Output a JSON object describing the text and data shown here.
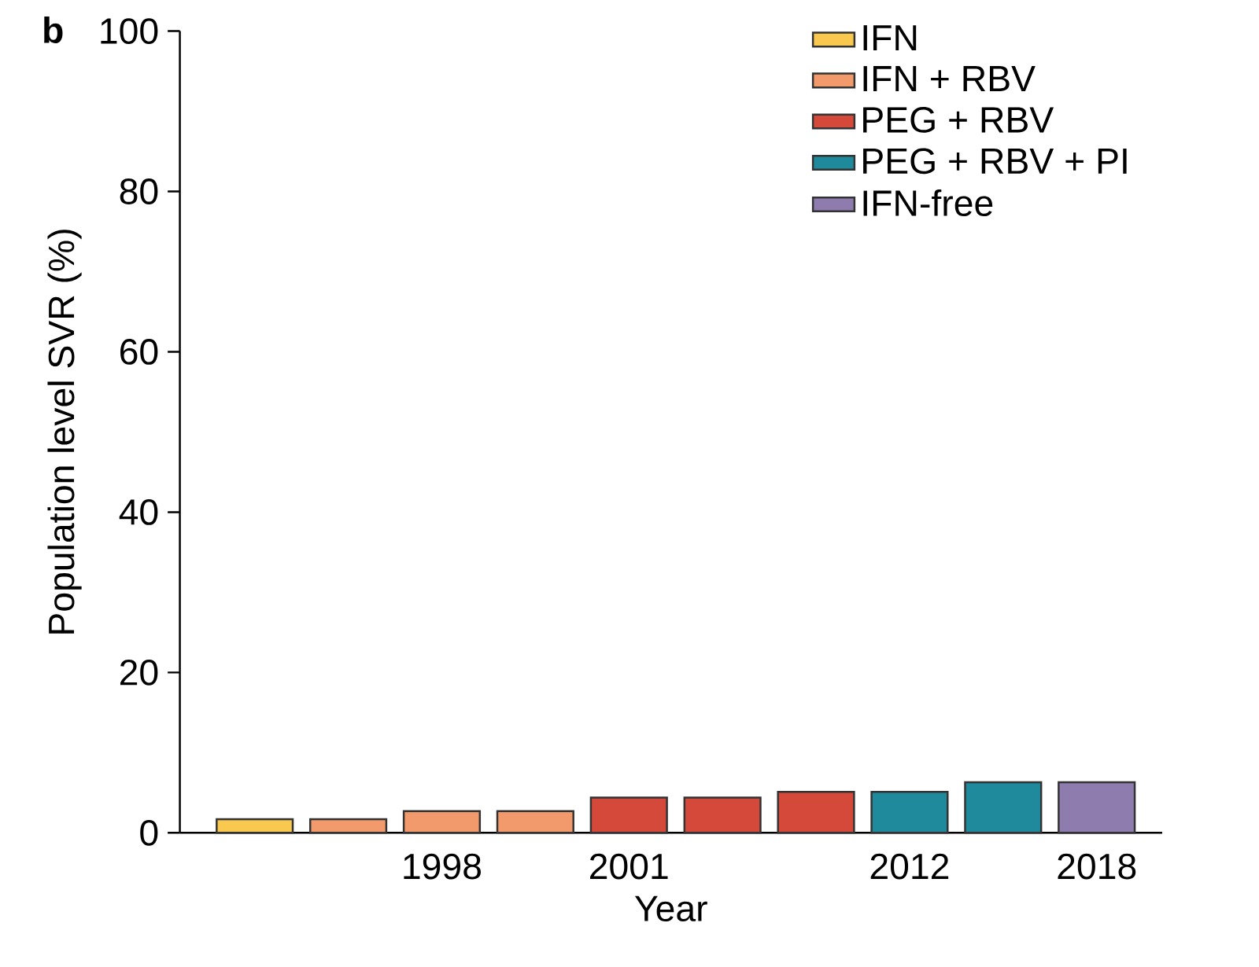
{
  "chart_data": {
    "type": "bar",
    "xlabel": "Year",
    "ylabel": "Population level SVR (%)",
    "annotations": [
      "b"
    ],
    "categories": [
      null,
      null,
      "1998",
      null,
      "2001",
      null,
      null,
      "2012",
      null,
      "2018"
    ],
    "series": [
      {
        "name": "IFN",
        "color": "#f9c84f",
        "values": [
          1.7,
          null,
          null,
          null,
          null,
          null,
          null,
          null,
          null,
          null
        ]
      },
      {
        "name": "IFN + RBV",
        "color": "#f29a6b",
        "values": [
          null,
          1.7,
          2.7,
          2.7,
          null,
          null,
          null,
          null,
          null,
          null
        ]
      },
      {
        "name": "PEG + RBV",
        "color": "#d5493a",
        "values": [
          null,
          null,
          null,
          null,
          4.4,
          4.4,
          5.1,
          null,
          null,
          null
        ]
      },
      {
        "name": "PEG + RBV + PI",
        "color": "#1e8a9c",
        "values": [
          null,
          null,
          null,
          null,
          null,
          null,
          null,
          5.1,
          6.3,
          null
        ]
      },
      {
        "name": "IFN-free",
        "color": "#8f7cae",
        "values": [
          null,
          null,
          null,
          null,
          null,
          null,
          null,
          null,
          null,
          6.3
        ]
      }
    ],
    "ylim": [
      0,
      100
    ],
    "yticks": [
      0,
      20,
      40,
      60,
      80,
      100
    ],
    "legend": "top right"
  }
}
